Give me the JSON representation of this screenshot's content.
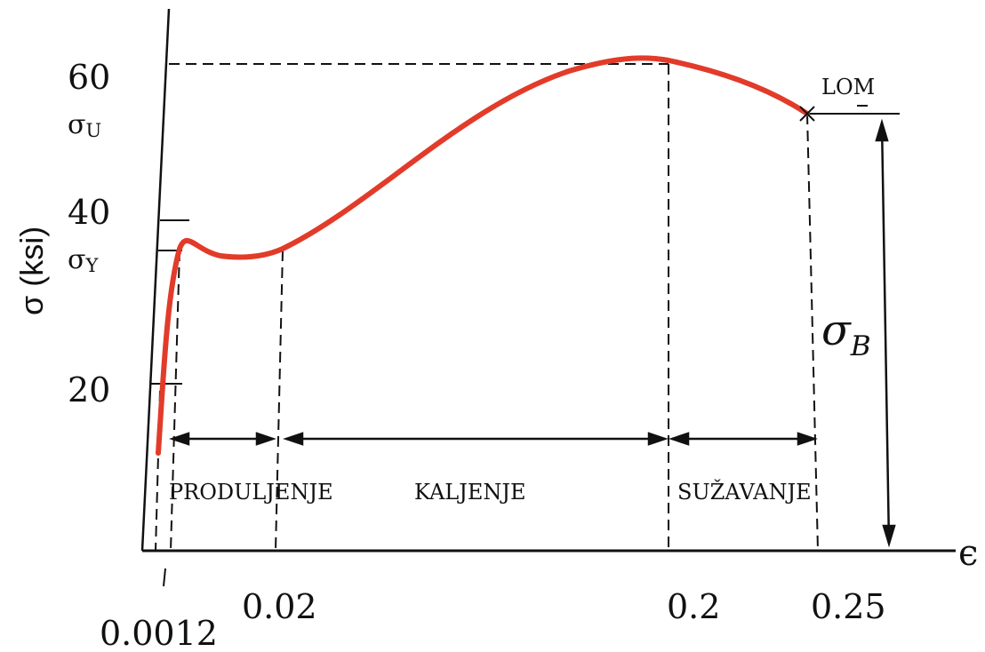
{
  "chart_data": {
    "type": "line",
    "title": "",
    "xlabel": "ϵ",
    "ylabel": "σ (ksi)",
    "y_ticks": [
      "60",
      "40",
      "20"
    ],
    "x_ticks": [
      "0.0012",
      "0.02",
      "0.2",
      "0.25"
    ],
    "levels": [
      {
        "name": "σU",
        "value": 55
      },
      {
        "name": "σY",
        "value": 36
      }
    ],
    "regions": [
      "PRODULJENJE",
      "KALJENJE",
      "SUŽAVANJE"
    ],
    "annotations": [
      "LOM",
      "σB"
    ],
    "series": [
      {
        "points": [
          [
            0.0,
            0
          ],
          [
            0.0004,
            12
          ],
          [
            0.0008,
            24
          ],
          [
            0.0012,
            36
          ],
          [
            0.002,
            37.5
          ],
          [
            0.004,
            36
          ],
          [
            0.01,
            35
          ],
          [
            0.02,
            36
          ],
          [
            0.06,
            41
          ],
          [
            0.1,
            49
          ],
          [
            0.15,
            57
          ],
          [
            0.2,
            61
          ],
          [
            0.225,
            59
          ],
          [
            0.25,
            55
          ]
        ]
      }
    ],
    "xlim": [
      0,
      0.3
    ],
    "ylim": [
      0,
      65
    ],
    "grid": false
  }
}
